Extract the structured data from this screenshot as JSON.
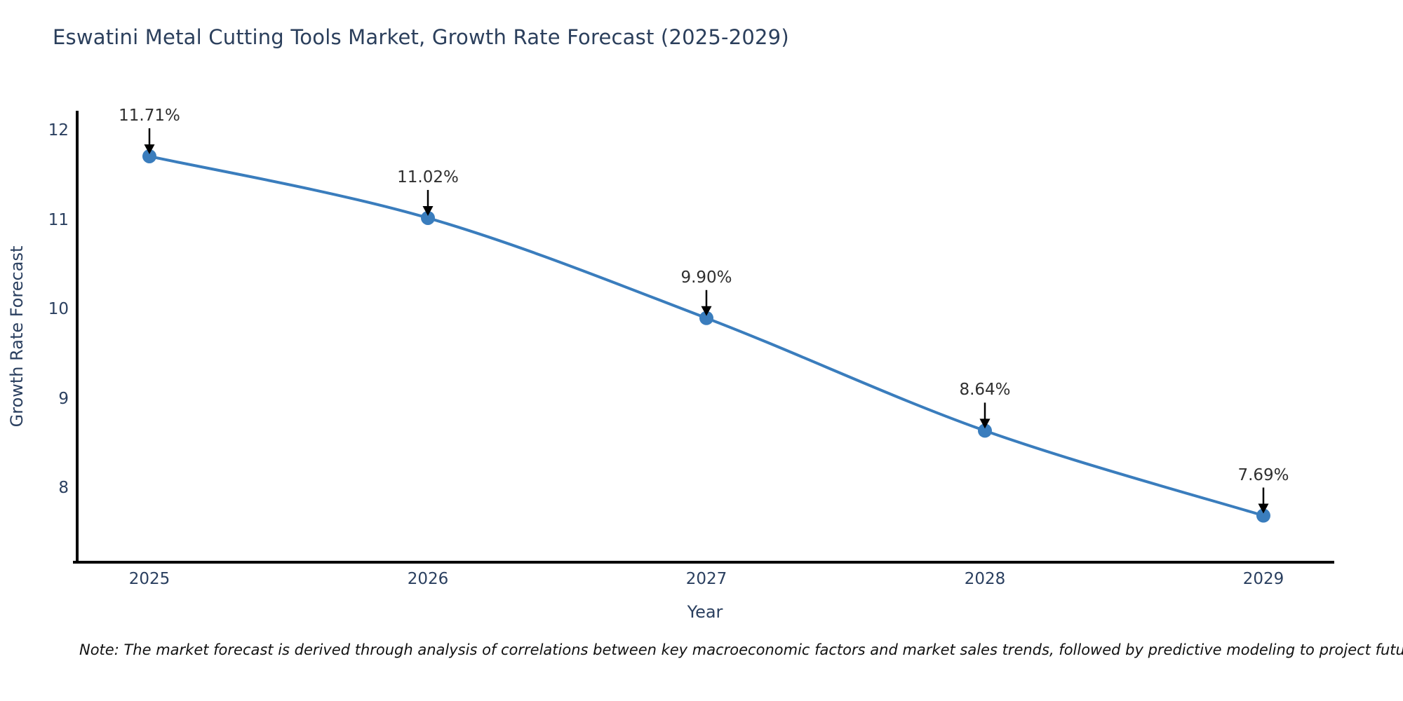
{
  "chart_data": {
    "type": "line",
    "title": "Eswatini Metal Cutting Tools Market, Growth Rate Forecast (2025-2029)",
    "xlabel": "Year",
    "ylabel": "Growth Rate Forecast",
    "x": [
      2025,
      2026,
      2027,
      2028,
      2029
    ],
    "series": [
      {
        "name": "Growth Rate Forecast",
        "values": [
          11.71,
          11.02,
          9.9,
          8.64,
          7.69
        ]
      }
    ],
    "point_labels": [
      "11.71%",
      "11.02%",
      "9.90%",
      "8.64%",
      "7.69%"
    ],
    "xticks": [
      "2025",
      "2026",
      "2027",
      "2028",
      "2029"
    ],
    "yticks": [
      12,
      11,
      10,
      9,
      8
    ],
    "ylim": [
      7.17,
      12.22
    ],
    "grid": false,
    "legend": "none",
    "line_shape": "spline",
    "marker": "circle",
    "annotation_arrows": true
  },
  "note": "Note: The market forecast is derived through analysis of correlations between key macroeconomic factors and market sales trends, followed by predictive modeling to project future sales",
  "colors": {
    "line": "#3a7dbd",
    "marker": "#3a7dbd",
    "title_text": "#2b3f5c",
    "axis_text": "#2a3f5f",
    "annotation_text": "#2f2f2f",
    "axis_line": "#000000",
    "note_text": "#111111"
  }
}
